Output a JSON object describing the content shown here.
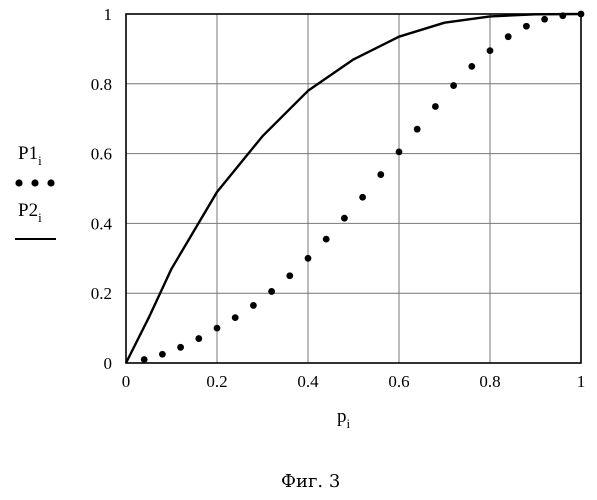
{
  "chart_data": {
    "type": "line",
    "title": "",
    "xlabel": "p",
    "xlabel_subscript": "i",
    "ylabel": "",
    "xlim": [
      0,
      1
    ],
    "ylim": [
      0,
      1
    ],
    "grid": true,
    "x_ticks": [
      "0",
      "0.2",
      "0.4",
      "0.6",
      "0.8",
      "1"
    ],
    "y_ticks": [
      "0",
      "0.2",
      "0.4",
      "0.6",
      "0.8",
      "1"
    ],
    "legend": [
      {
        "name": "P1",
        "subscript": "i",
        "style": "dotted"
      },
      {
        "name": "P2",
        "subscript": "i",
        "style": "solid"
      }
    ],
    "series": [
      {
        "name": "P1",
        "style": "dotted",
        "x": [
          0,
          0.04,
          0.08,
          0.12,
          0.16,
          0.2,
          0.24,
          0.28,
          0.32,
          0.36,
          0.4,
          0.44,
          0.48,
          0.52,
          0.56,
          0.6,
          0.64,
          0.68,
          0.72,
          0.76,
          0.8,
          0.84,
          0.88,
          0.92,
          0.96,
          1.0
        ],
        "y": [
          0,
          0.01,
          0.025,
          0.045,
          0.07,
          0.1,
          0.13,
          0.165,
          0.205,
          0.25,
          0.3,
          0.355,
          0.415,
          0.475,
          0.54,
          0.605,
          0.67,
          0.735,
          0.795,
          0.85,
          0.895,
          0.935,
          0.965,
          0.985,
          0.995,
          1.0
        ]
      },
      {
        "name": "P2",
        "style": "solid",
        "x": [
          0,
          0.05,
          0.1,
          0.2,
          0.3,
          0.4,
          0.5,
          0.6,
          0.7,
          0.8,
          0.9,
          1.0
        ],
        "y": [
          0,
          0.13,
          0.27,
          0.49,
          0.65,
          0.78,
          0.87,
          0.935,
          0.975,
          0.993,
          0.999,
          1.0
        ]
      }
    ]
  },
  "caption": "Фиг. 3"
}
